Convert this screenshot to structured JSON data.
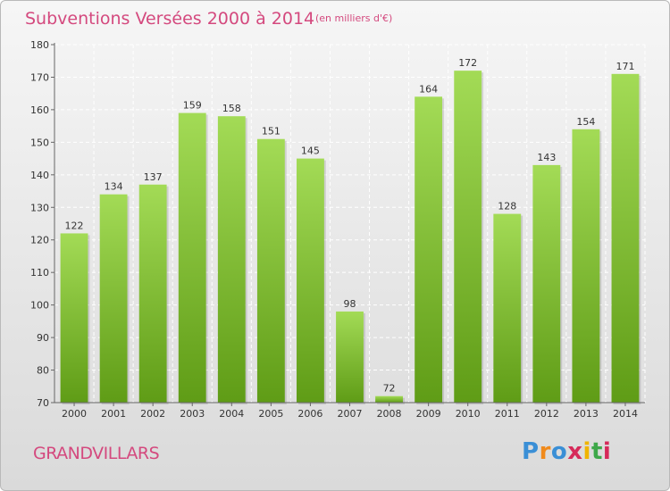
{
  "header": {
    "title": "Subventions Versées 2000 à 2014",
    "subtitle": "(en milliers d'€)"
  },
  "footer": {
    "commune": "GRANDVILLARS",
    "logo": "Proxiti"
  },
  "colors": {
    "accent_text": "#d4497e",
    "bar_light": "#a3db56",
    "bar_dark": "#5f9c16"
  },
  "chart_data": {
    "type": "bar",
    "title": "Subventions Versées 2000 à 2014",
    "subtitle": "(en milliers d'€)",
    "categories": [
      "2000",
      "2001",
      "2002",
      "2003",
      "2004",
      "2005",
      "2006",
      "2007",
      "2008",
      "2009",
      "2010",
      "2011",
      "2012",
      "2013",
      "2014"
    ],
    "values": [
      122,
      134,
      137,
      159,
      158,
      151,
      145,
      98,
      72,
      164,
      172,
      128,
      143,
      154,
      171
    ],
    "ylim": [
      70,
      180
    ],
    "yticks": [
      70,
      80,
      90,
      100,
      110,
      120,
      130,
      140,
      150,
      160,
      170,
      180
    ],
    "grid": true,
    "legend": "none"
  }
}
